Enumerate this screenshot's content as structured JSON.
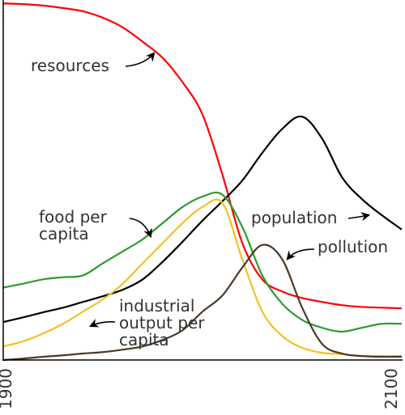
{
  "chart_data": {
    "type": "line",
    "x": [
      1900,
      1910,
      1920,
      1930,
      1940,
      1950,
      1960,
      1970,
      1980,
      1990,
      2000,
      2010,
      2020,
      2030,
      2040,
      2050,
      2060,
      2070,
      2080,
      2090,
      2100
    ],
    "xlim": [
      1900,
      2100
    ],
    "xticks": [
      1900,
      2100
    ],
    "ylim": [
      0,
      100
    ],
    "series": [
      {
        "name": "resources",
        "color": "#ff0000",
        "values": [
          99.5,
          99.3,
          98.9,
          98.2,
          97.3,
          95.5,
          92.8,
          88.8,
          84.3,
          77.5,
          68.5,
          51.7,
          32.6,
          22.5,
          19.1,
          17.3,
          16.2,
          15.3,
          14.8,
          14.6,
          14.4
        ]
      },
      {
        "name": "population",
        "color": "#000000",
        "values": [
          10.6,
          11.9,
          13.3,
          14.6,
          16.2,
          17.8,
          19.6,
          22.5,
          27.4,
          33,
          38.9,
          44.3,
          50.1,
          57.8,
          64.5,
          67.9,
          61.8,
          51,
          44.9,
          40.4,
          36.4
        ]
      },
      {
        "name": "food per capita",
        "color": "#2e9a2e",
        "values": [
          20.2,
          21.3,
          22.5,
          23.1,
          23.6,
          27,
          30.3,
          33.7,
          38.2,
          42.7,
          45.6,
          46.1,
          37.1,
          23.6,
          15.7,
          11.2,
          9,
          7.9,
          9,
          10.1,
          10.1
        ]
      },
      {
        "name": "industrial output per capita",
        "color": "#f5c023",
        "values": [
          3.8,
          5.2,
          7.4,
          10.1,
          13.5,
          16.9,
          21.3,
          27,
          32.6,
          38.2,
          42.7,
          43.8,
          28.1,
          13.5,
          6.7,
          3.4,
          2,
          1.6,
          1.1,
          1.1,
          1.1
        ]
      },
      {
        "name": "pollution",
        "color": "#4a3a2a",
        "values": [
          0,
          0.4,
          0.9,
          1.3,
          1.8,
          2.2,
          2.9,
          3.8,
          5.6,
          8.3,
          13.5,
          18,
          25.8,
          32.1,
          28.1,
          14.6,
          4.5,
          1.8,
          1.1,
          0.9,
          0.9
        ]
      }
    ],
    "annotations": [
      {
        "lines": [
          "resources"
        ]
      },
      {
        "lines": [
          "food per",
          "capita"
        ]
      },
      {
        "lines": [
          "industrial",
          "output per",
          "capita"
        ]
      },
      {
        "lines": [
          "population"
        ]
      },
      {
        "lines": [
          "pollution"
        ]
      }
    ]
  }
}
